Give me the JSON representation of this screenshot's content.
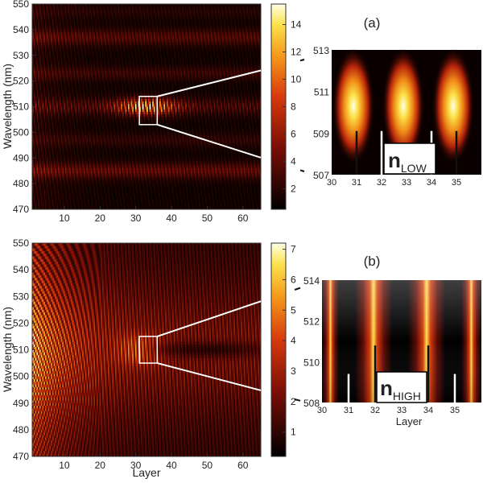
{
  "chart_data": [
    {
      "type": "heatmap",
      "panel": "a",
      "xlabel": "",
      "ylabel": "Wavelength (nm)",
      "xlim": [
        1,
        65
      ],
      "ylim": [
        470,
        550
      ],
      "x_ticks": [
        10,
        20,
        30,
        40,
        50,
        60
      ],
      "y_ticks": [
        470,
        480,
        490,
        500,
        510,
        520,
        530,
        540,
        550
      ],
      "colorbar": {
        "min": 0.5,
        "max": 15.5,
        "ticks": [
          2,
          4,
          6,
          8,
          10,
          12,
          14
        ]
      },
      "zoom_box": {
        "x": [
          31,
          36
        ],
        "y": [
          503,
          514
        ]
      },
      "inset": {
        "label": "(a)",
        "xlim": [
          30,
          36
        ],
        "ylim": [
          507,
          513
        ],
        "x_ticks": [
          30,
          31,
          32,
          33,
          34,
          35
        ],
        "y_ticks": [
          507,
          509,
          511,
          513
        ],
        "text_main": "n",
        "text_sub": "LOW",
        "xlabel": ""
      }
    },
    {
      "type": "heatmap",
      "panel": "b",
      "xlabel": "Layer",
      "ylabel": "Wavelength (nm)",
      "xlim": [
        1,
        65
      ],
      "ylim": [
        470,
        550
      ],
      "x_ticks": [
        10,
        20,
        30,
        40,
        50,
        60
      ],
      "y_ticks": [
        470,
        480,
        490,
        500,
        510,
        520,
        530,
        540,
        550
      ],
      "colorbar": {
        "min": 0.2,
        "max": 7.2,
        "ticks": [
          1,
          2,
          3,
          4,
          5,
          6,
          7
        ]
      },
      "zoom_box": {
        "x": [
          31,
          36
        ],
        "y": [
          505,
          515
        ]
      },
      "inset": {
        "label": "(b)",
        "xlim": [
          30,
          36
        ],
        "ylim": [
          508,
          514
        ],
        "x_ticks": [
          30,
          31,
          32,
          33,
          34,
          35
        ],
        "y_ticks": [
          508,
          510,
          512,
          514
        ],
        "text_main": "n",
        "text_sub": "HIGH",
        "xlabel": "Layer"
      }
    }
  ]
}
